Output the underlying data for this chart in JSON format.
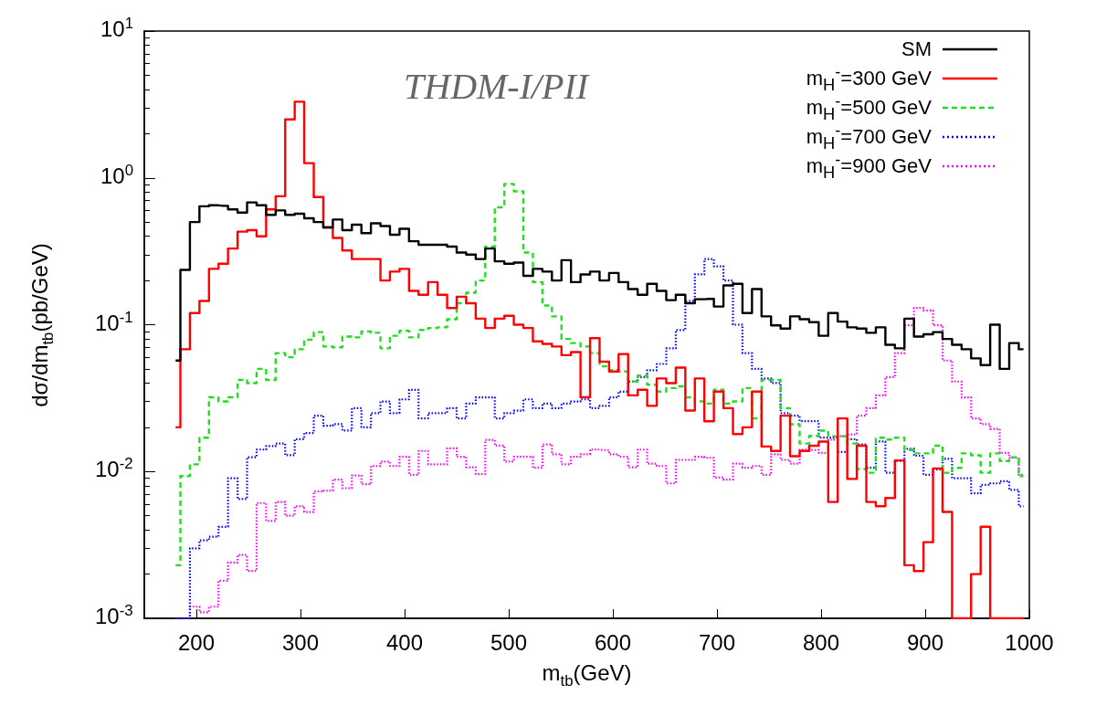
{
  "chart_data": {
    "type": "step",
    "xlabel": "m$_{tb}$(GeV)",
    "ylabel": "dσ/dm$_{tb}$(pb/GeV)",
    "annotations": [
      "THDM-I/PII"
    ],
    "log": "y",
    "grid": false,
    "legend": "top right",
    "marker": "none",
    "xlim": [
      150,
      1000
    ],
    "xticks": [
      200,
      300,
      400,
      500,
      600,
      700,
      800,
      900,
      1000
    ],
    "ylim": [
      0.001,
      10
    ],
    "yticks": [
      {
        "value": 0.001,
        "label": "10$^{-3}$"
      },
      {
        "value": 0.01,
        "label": "10$^{-2}$"
      },
      {
        "value": 0.1,
        "label": "10$^{-1}$"
      },
      {
        "value": 1,
        "label": "10$^{0}$"
      },
      {
        "value": 10,
        "label": "10$^{1}$"
      }
    ],
    "x": [
      180.1,
      189.2,
      198.4,
      207.5,
      216.7,
      225.8,
      235.0,
      244.1,
      253.3,
      262.4,
      271.6,
      280.7,
      289.9,
      299.0,
      308.2,
      317.3,
      326.5,
      335.6,
      344.8,
      353.9,
      363.1,
      372.2,
      381.4,
      390.5,
      399.7,
      408.8,
      418.0,
      427.1,
      436.3,
      445.4,
      454.6,
      463.7,
      472.9,
      482.0,
      491.2,
      500.3,
      509.5,
      518.6,
      527.8,
      536.9,
      546.1,
      555.2,
      564.4,
      573.5,
      582.7,
      591.8,
      601.0,
      610.1,
      619.3,
      628.4,
      637.6,
      646.7,
      655.9,
      665.0,
      674.2,
      683.3,
      692.5,
      701.6,
      710.8,
      719.9,
      729.1,
      738.2,
      747.4,
      756.5,
      765.7,
      774.8,
      784.0,
      793.1,
      802.3,
      811.4,
      820.6,
      829.7,
      838.9,
      848.0,
      857.2,
      866.3,
      875.5,
      884.6,
      893.8,
      902.9,
      912.1,
      921.2,
      930.4,
      939.5,
      948.7,
      957.8,
      967.0,
      976.1,
      985.3,
      994.4
    ],
    "series": [
      {
        "name": "SM",
        "color": "#000000",
        "line_style": "solid",
        "values": [
          0.057,
          0.236,
          0.5,
          0.64,
          0.65,
          0.645,
          0.61,
          0.58,
          0.68,
          0.65,
          0.56,
          0.6,
          0.56,
          0.57,
          0.53,
          0.5,
          0.46,
          0.52,
          0.44,
          0.48,
          0.42,
          0.49,
          0.47,
          0.41,
          0.45,
          0.37,
          0.35,
          0.35,
          0.35,
          0.34,
          0.31,
          0.3,
          0.28,
          0.33,
          0.27,
          0.26,
          0.265,
          0.215,
          0.24,
          0.23,
          0.2,
          0.275,
          0.195,
          0.22,
          0.23,
          0.2,
          0.225,
          0.195,
          0.175,
          0.16,
          0.19,
          0.17,
          0.147,
          0.16,
          0.14,
          0.149,
          0.15,
          0.133,
          0.185,
          0.19,
          0.12,
          0.175,
          0.114,
          0.099,
          0.094,
          0.114,
          0.109,
          0.104,
          0.084,
          0.12,
          0.105,
          0.096,
          0.094,
          0.088,
          0.096,
          0.073,
          0.069,
          0.11,
          0.083,
          0.086,
          0.089,
          0.08,
          0.073,
          0.068,
          0.059,
          0.053,
          0.1,
          0.05,
          0.075,
          0.068
        ]
      },
      {
        "name": "m$_{H}$$^{-}$=300 GeV",
        "color": "#ff0000",
        "line_style": "solid",
        "values": [
          0.02,
          0.068,
          0.12,
          0.145,
          0.24,
          0.26,
          0.33,
          0.43,
          0.44,
          0.4,
          0.61,
          0.75,
          2.5,
          3.3,
          1.26,
          0.74,
          0.46,
          0.39,
          0.32,
          0.28,
          0.28,
          0.28,
          0.2,
          0.23,
          0.24,
          0.17,
          0.16,
          0.195,
          0.16,
          0.13,
          0.155,
          0.14,
          0.11,
          0.095,
          0.11,
          0.115,
          0.1,
          0.095,
          0.077,
          0.074,
          0.071,
          0.062,
          0.065,
          0.032,
          0.081,
          0.056,
          0.048,
          0.063,
          0.033,
          0.036,
          0.028,
          0.043,
          0.04,
          0.051,
          0.026,
          0.043,
          0.022,
          0.035,
          0.027,
          0.018,
          0.02,
          0.035,
          0.0148,
          0.0138,
          0.024,
          0.0127,
          0.0138,
          0.015,
          0.016,
          0.0062,
          0.023,
          0.0089,
          0.015,
          0.0062,
          0.0058,
          0.0066,
          0.0119,
          0.0023,
          0.0021,
          0.0033,
          0.0105,
          0.0053,
          0.001,
          0.001,
          0.002,
          0.0042,
          0.001,
          0.001,
          0.001,
          0.001
        ]
      },
      {
        "name": "m$_{H}$$^{-}$=500 GeV",
        "color": "#22dd22",
        "line_style": "dashed",
        "values": [
          0.0023,
          0.0093,
          0.0112,
          0.017,
          0.032,
          0.03,
          0.032,
          0.042,
          0.04,
          0.05,
          0.042,
          0.064,
          0.06,
          0.068,
          0.079,
          0.089,
          0.071,
          0.07,
          0.083,
          0.082,
          0.09,
          0.088,
          0.069,
          0.084,
          0.091,
          0.082,
          0.092,
          0.095,
          0.096,
          0.109,
          0.14,
          0.165,
          0.2,
          0.34,
          0.63,
          0.91,
          0.81,
          0.31,
          0.195,
          0.135,
          0.114,
          0.08,
          0.075,
          0.071,
          0.064,
          0.052,
          0.049,
          0.048,
          0.041,
          0.045,
          0.039,
          0.035,
          0.037,
          0.038,
          0.032,
          0.03,
          0.029,
          0.036,
          0.029,
          0.03,
          0.037,
          0.023,
          0.042,
          0.042,
          0.027,
          0.021,
          0.0155,
          0.0175,
          0.019,
          0.0174,
          0.0174,
          0.0155,
          0.0104,
          0.0098,
          0.017,
          0.0165,
          0.017,
          0.014,
          0.0133,
          0.0133,
          0.015,
          0.0098,
          0.0106,
          0.0133,
          0.0129,
          0.0098,
          0.0133,
          0.0118,
          0.0125,
          0.0093
        ]
      },
      {
        "name": "m$_{H}$$^{-}$=700 GeV",
        "color": "#0000ff",
        "line_style": "dotted",
        "values": [
          0.001,
          0.001,
          0.003,
          0.0034,
          0.0036,
          0.0042,
          0.009,
          0.0065,
          0.0125,
          0.0141,
          0.0149,
          0.0155,
          0.0129,
          0.0166,
          0.0183,
          0.024,
          0.0205,
          0.021,
          0.019,
          0.027,
          0.02,
          0.025,
          0.03,
          0.025,
          0.031,
          0.036,
          0.023,
          0.025,
          0.025,
          0.027,
          0.023,
          0.029,
          0.032,
          0.032,
          0.023,
          0.025,
          0.026,
          0.031,
          0.027,
          0.029,
          0.027,
          0.029,
          0.03,
          0.031,
          0.027,
          0.028,
          0.032,
          0.035,
          0.041,
          0.044,
          0.049,
          0.054,
          0.069,
          0.092,
          0.145,
          0.22,
          0.28,
          0.25,
          0.2,
          0.1,
          0.064,
          0.05,
          0.043,
          0.04,
          0.025,
          0.024,
          0.022,
          0.022,
          0.017,
          0.017,
          0.0136,
          0.0166,
          0.0153,
          0.0106,
          0.016,
          0.0098,
          0.0118,
          0.0143,
          0.0128,
          0.0095,
          0.0103,
          0.0122,
          0.009,
          0.009,
          0.0071,
          0.0081,
          0.0083,
          0.0086,
          0.0075,
          0.0058
        ]
      },
      {
        "name": "m$_{H}$$^{-}$=900 GeV",
        "color": "#ff00ff",
        "line_style": "dotted",
        "values": [
          0.001,
          0.001,
          0.0012,
          0.0011,
          0.0012,
          0.0018,
          0.0024,
          0.0027,
          0.0021,
          0.0061,
          0.0046,
          0.0062,
          0.005,
          0.0058,
          0.0053,
          0.0073,
          0.0074,
          0.0088,
          0.0077,
          0.0094,
          0.0082,
          0.0109,
          0.0117,
          0.0109,
          0.0126,
          0.0095,
          0.0138,
          0.0112,
          0.0112,
          0.0144,
          0.0126,
          0.0107,
          0.0096,
          0.0164,
          0.015,
          0.0117,
          0.0126,
          0.0126,
          0.0106,
          0.0153,
          0.0131,
          0.0112,
          0.0126,
          0.0131,
          0.0141,
          0.014,
          0.0131,
          0.0126,
          0.0107,
          0.0141,
          0.0113,
          0.0109,
          0.0083,
          0.012,
          0.012,
          0.0126,
          0.0124,
          0.0091,
          0.0088,
          0.0113,
          0.0106,
          0.0109,
          0.0095,
          0.0131,
          0.012,
          0.0113,
          0.0141,
          0.014,
          0.0134,
          0.0165,
          0.0174,
          0.0179,
          0.024,
          0.027,
          0.033,
          0.044,
          0.064,
          0.099,
          0.13,
          0.125,
          0.099,
          0.057,
          0.041,
          0.032,
          0.023,
          0.021,
          0.0195,
          0.0134,
          0.0124,
          0.0095
        ]
      }
    ]
  }
}
